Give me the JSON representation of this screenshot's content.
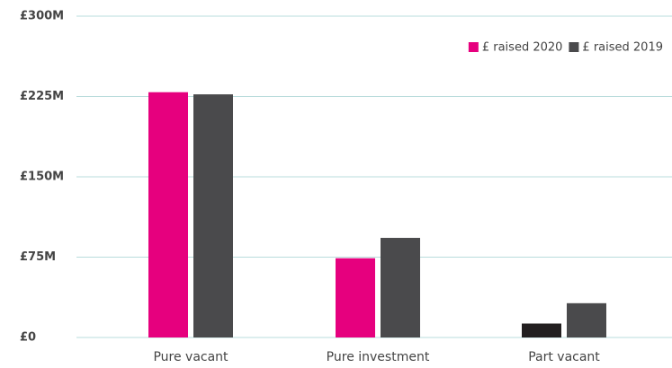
{
  "chart_data": {
    "type": "bar",
    "categories": [
      "Pure vacant",
      "Pure investment",
      "Part vacant"
    ],
    "series": [
      {
        "name": "£ raised 2020",
        "color": "#e6007e",
        "colors": [
          "#e6007e",
          "#e6007e",
          "#231f20"
        ],
        "values": [
          229,
          74,
          13
        ]
      },
      {
        "name": "£ raised 2019",
        "color": "#4a4a4c",
        "values": [
          227,
          93,
          32
        ]
      }
    ],
    "ylim": [
      0,
      300
    ],
    "yticks": [
      {
        "value": 0,
        "label": "£0"
      },
      {
        "value": 75,
        "label": "£75M"
      },
      {
        "value": 150,
        "label": "£150M"
      },
      {
        "value": 225,
        "label": "£225M"
      },
      {
        "value": 300,
        "label": "£300M"
      }
    ],
    "grid": true,
    "legend": "top-right"
  }
}
